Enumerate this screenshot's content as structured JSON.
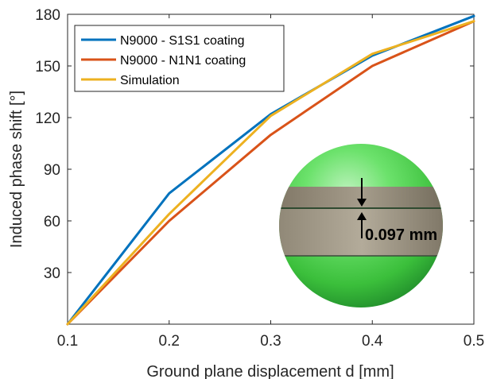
{
  "chart_data": {
    "type": "line",
    "xlabel": "Ground plane displacement d [mm]",
    "ylabel": "Induced phase shift [°]",
    "xlim": [
      0.1,
      0.5
    ],
    "ylim": [
      0,
      180
    ],
    "xticks": [
      "0.1",
      "0.2",
      "0.3",
      "0.4",
      "0.5"
    ],
    "yticks": [
      "30",
      "60",
      "90",
      "120",
      "150",
      "180"
    ],
    "grid": false,
    "legend_position": "top-left",
    "x": [
      0.1,
      0.2,
      0.3,
      0.4,
      0.5
    ],
    "series": [
      {
        "name": "N9000 - S1S1 coating",
        "color": "#0072BD",
        "values": [
          0,
          76,
          122,
          156,
          179
        ]
      },
      {
        "name": "N9000 - N1N1 coating",
        "color": "#D95319",
        "values": [
          0,
          60,
          110,
          150,
          176
        ]
      },
      {
        "name": "Simulation",
        "color": "#EDB120",
        "values": [
          0,
          64,
          121,
          157,
          176
        ]
      }
    ],
    "annotations": [
      {
        "text": "0.097 mm"
      }
    ]
  }
}
